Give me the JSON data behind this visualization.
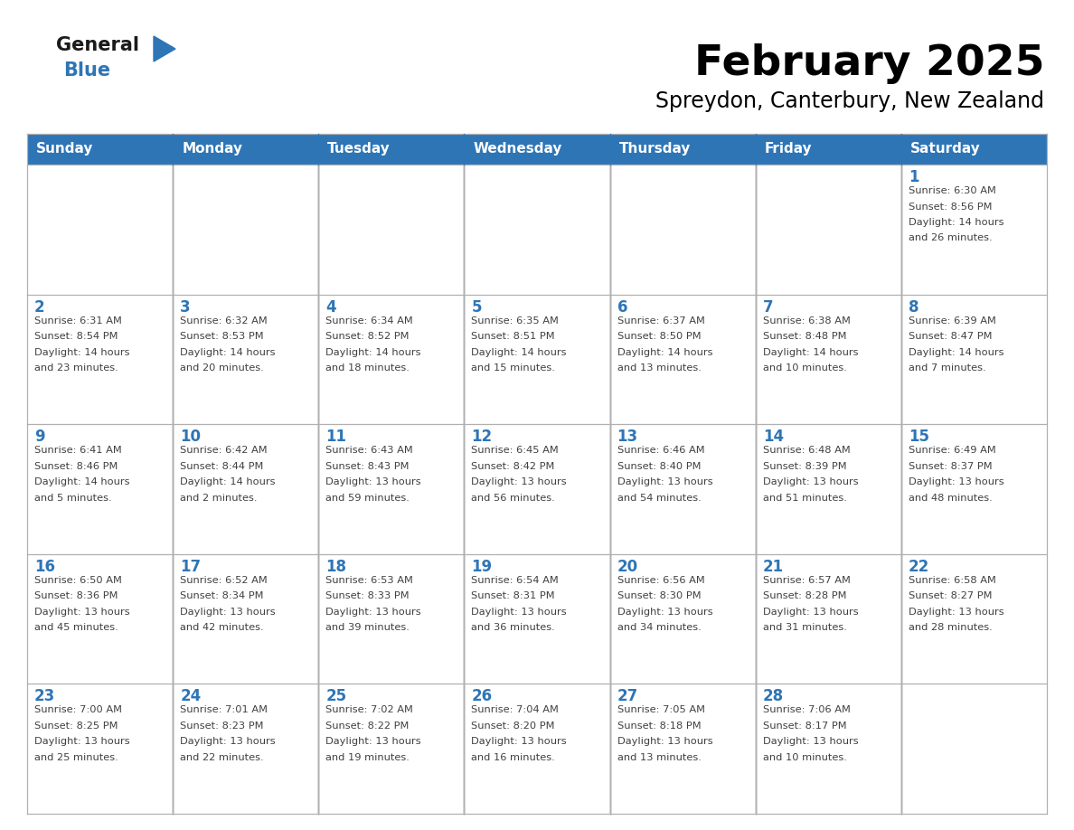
{
  "title": "February 2025",
  "subtitle": "Spreydon, Canterbury, New Zealand",
  "days_of_week": [
    "Sunday",
    "Monday",
    "Tuesday",
    "Wednesday",
    "Thursday",
    "Friday",
    "Saturday"
  ],
  "header_bg": "#2E75B6",
  "header_text": "#FFFFFF",
  "day_num_color": "#2E75B6",
  "info_text_color": "#404040",
  "title_color": "#000000",
  "subtitle_color": "#000000",
  "weeks": [
    [
      {
        "day": null,
        "info": ""
      },
      {
        "day": null,
        "info": ""
      },
      {
        "day": null,
        "info": ""
      },
      {
        "day": null,
        "info": ""
      },
      {
        "day": null,
        "info": ""
      },
      {
        "day": null,
        "info": ""
      },
      {
        "day": 1,
        "info": "Sunrise: 6:30 AM\nSunset: 8:56 PM\nDaylight: 14 hours\nand 26 minutes."
      }
    ],
    [
      {
        "day": 2,
        "info": "Sunrise: 6:31 AM\nSunset: 8:54 PM\nDaylight: 14 hours\nand 23 minutes."
      },
      {
        "day": 3,
        "info": "Sunrise: 6:32 AM\nSunset: 8:53 PM\nDaylight: 14 hours\nand 20 minutes."
      },
      {
        "day": 4,
        "info": "Sunrise: 6:34 AM\nSunset: 8:52 PM\nDaylight: 14 hours\nand 18 minutes."
      },
      {
        "day": 5,
        "info": "Sunrise: 6:35 AM\nSunset: 8:51 PM\nDaylight: 14 hours\nand 15 minutes."
      },
      {
        "day": 6,
        "info": "Sunrise: 6:37 AM\nSunset: 8:50 PM\nDaylight: 14 hours\nand 13 minutes."
      },
      {
        "day": 7,
        "info": "Sunrise: 6:38 AM\nSunset: 8:48 PM\nDaylight: 14 hours\nand 10 minutes."
      },
      {
        "day": 8,
        "info": "Sunrise: 6:39 AM\nSunset: 8:47 PM\nDaylight: 14 hours\nand 7 minutes."
      }
    ],
    [
      {
        "day": 9,
        "info": "Sunrise: 6:41 AM\nSunset: 8:46 PM\nDaylight: 14 hours\nand 5 minutes."
      },
      {
        "day": 10,
        "info": "Sunrise: 6:42 AM\nSunset: 8:44 PM\nDaylight: 14 hours\nand 2 minutes."
      },
      {
        "day": 11,
        "info": "Sunrise: 6:43 AM\nSunset: 8:43 PM\nDaylight: 13 hours\nand 59 minutes."
      },
      {
        "day": 12,
        "info": "Sunrise: 6:45 AM\nSunset: 8:42 PM\nDaylight: 13 hours\nand 56 minutes."
      },
      {
        "day": 13,
        "info": "Sunrise: 6:46 AM\nSunset: 8:40 PM\nDaylight: 13 hours\nand 54 minutes."
      },
      {
        "day": 14,
        "info": "Sunrise: 6:48 AM\nSunset: 8:39 PM\nDaylight: 13 hours\nand 51 minutes."
      },
      {
        "day": 15,
        "info": "Sunrise: 6:49 AM\nSunset: 8:37 PM\nDaylight: 13 hours\nand 48 minutes."
      }
    ],
    [
      {
        "day": 16,
        "info": "Sunrise: 6:50 AM\nSunset: 8:36 PM\nDaylight: 13 hours\nand 45 minutes."
      },
      {
        "day": 17,
        "info": "Sunrise: 6:52 AM\nSunset: 8:34 PM\nDaylight: 13 hours\nand 42 minutes."
      },
      {
        "day": 18,
        "info": "Sunrise: 6:53 AM\nSunset: 8:33 PM\nDaylight: 13 hours\nand 39 minutes."
      },
      {
        "day": 19,
        "info": "Sunrise: 6:54 AM\nSunset: 8:31 PM\nDaylight: 13 hours\nand 36 minutes."
      },
      {
        "day": 20,
        "info": "Sunrise: 6:56 AM\nSunset: 8:30 PM\nDaylight: 13 hours\nand 34 minutes."
      },
      {
        "day": 21,
        "info": "Sunrise: 6:57 AM\nSunset: 8:28 PM\nDaylight: 13 hours\nand 31 minutes."
      },
      {
        "day": 22,
        "info": "Sunrise: 6:58 AM\nSunset: 8:27 PM\nDaylight: 13 hours\nand 28 minutes."
      }
    ],
    [
      {
        "day": 23,
        "info": "Sunrise: 7:00 AM\nSunset: 8:25 PM\nDaylight: 13 hours\nand 25 minutes."
      },
      {
        "day": 24,
        "info": "Sunrise: 7:01 AM\nSunset: 8:23 PM\nDaylight: 13 hours\nand 22 minutes."
      },
      {
        "day": 25,
        "info": "Sunrise: 7:02 AM\nSunset: 8:22 PM\nDaylight: 13 hours\nand 19 minutes."
      },
      {
        "day": 26,
        "info": "Sunrise: 7:04 AM\nSunset: 8:20 PM\nDaylight: 13 hours\nand 16 minutes."
      },
      {
        "day": 27,
        "info": "Sunrise: 7:05 AM\nSunset: 8:18 PM\nDaylight: 13 hours\nand 13 minutes."
      },
      {
        "day": 28,
        "info": "Sunrise: 7:06 AM\nSunset: 8:17 PM\nDaylight: 13 hours\nand 10 minutes."
      },
      {
        "day": null,
        "info": ""
      }
    ]
  ]
}
